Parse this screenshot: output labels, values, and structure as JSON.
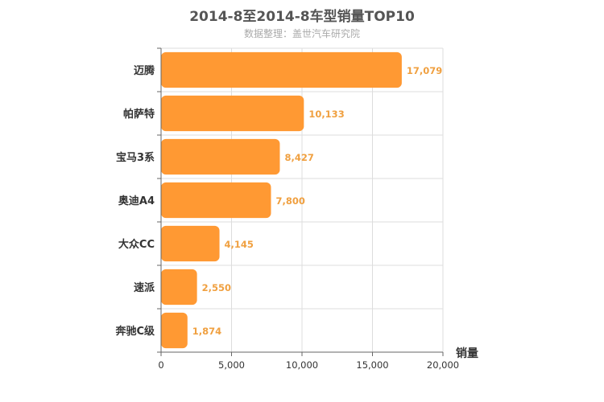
{
  "chart_data": {
    "type": "bar",
    "orientation": "horizontal",
    "title": "2014-8至2014-8车型销量TOP10",
    "subtitle": "数据整理：盖世汽车研究院",
    "categories": [
      "迈腾",
      "帕萨特",
      "宝马3系",
      "奥迪A4",
      "大众CC",
      "速派",
      "奔驰C级"
    ],
    "values": [
      17079,
      10133,
      8427,
      7800,
      4145,
      2550,
      1874
    ],
    "value_labels": [
      "17,079",
      "10,133",
      "8,427",
      "7,800",
      "4,145",
      "2,550",
      "1,874"
    ],
    "xlabel": "销量",
    "ylabel": "",
    "xlim": [
      0,
      20000
    ],
    "x_ticks": [
      0,
      5000,
      10000,
      15000,
      20000
    ],
    "x_tick_labels": [
      "0",
      "5,000",
      "10,000",
      "15,000",
      "20,000"
    ],
    "grid": true,
    "colors": {
      "bar": "#FF9933",
      "value_label": "#F0A040",
      "grid": "#DDDDDD",
      "axis": "#666666"
    }
  }
}
